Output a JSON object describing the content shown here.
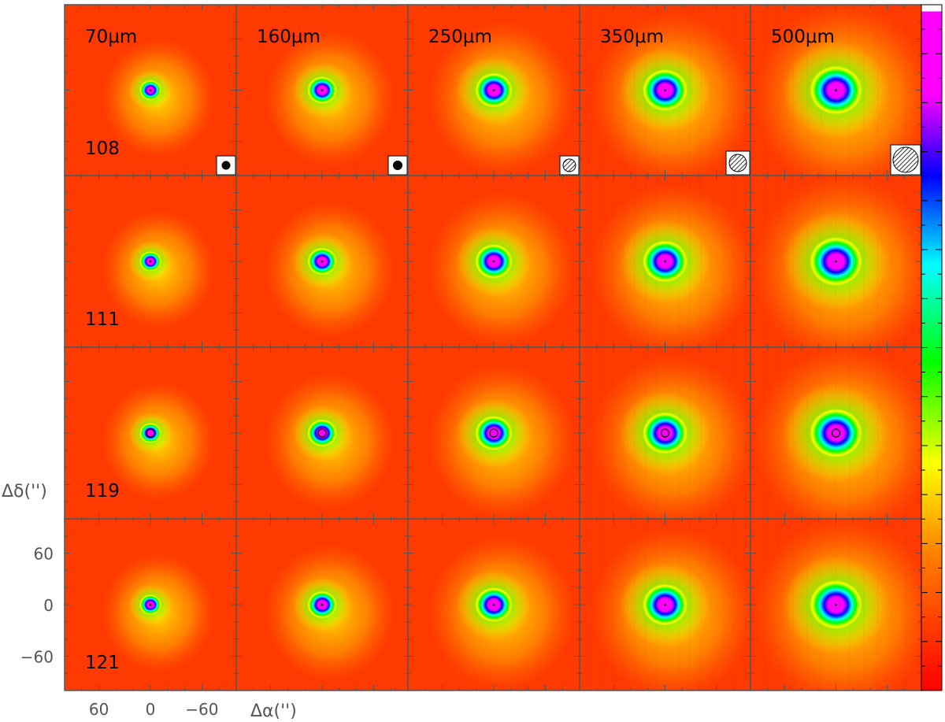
{
  "figure": {
    "wavelengths": [
      "70μm",
      "160μm",
      "250μm",
      "350μm",
      "500μm"
    ],
    "sources": [
      "108",
      "111",
      "119",
      "121"
    ],
    "y_axis": {
      "label": "Δδ('')",
      "ticks": [
        "60",
        "0",
        "−60"
      ]
    },
    "x_axis": {
      "label": "Δα('')",
      "ticks": [
        "60",
        "0",
        "−60"
      ]
    },
    "colorbar": {
      "scale": [
        "#ff0000",
        "#ff8000",
        "#ffff00",
        "#00ff00",
        "#00ffff",
        "#0000ff",
        "#ff00ff",
        "#ffffff"
      ]
    }
  }
}
